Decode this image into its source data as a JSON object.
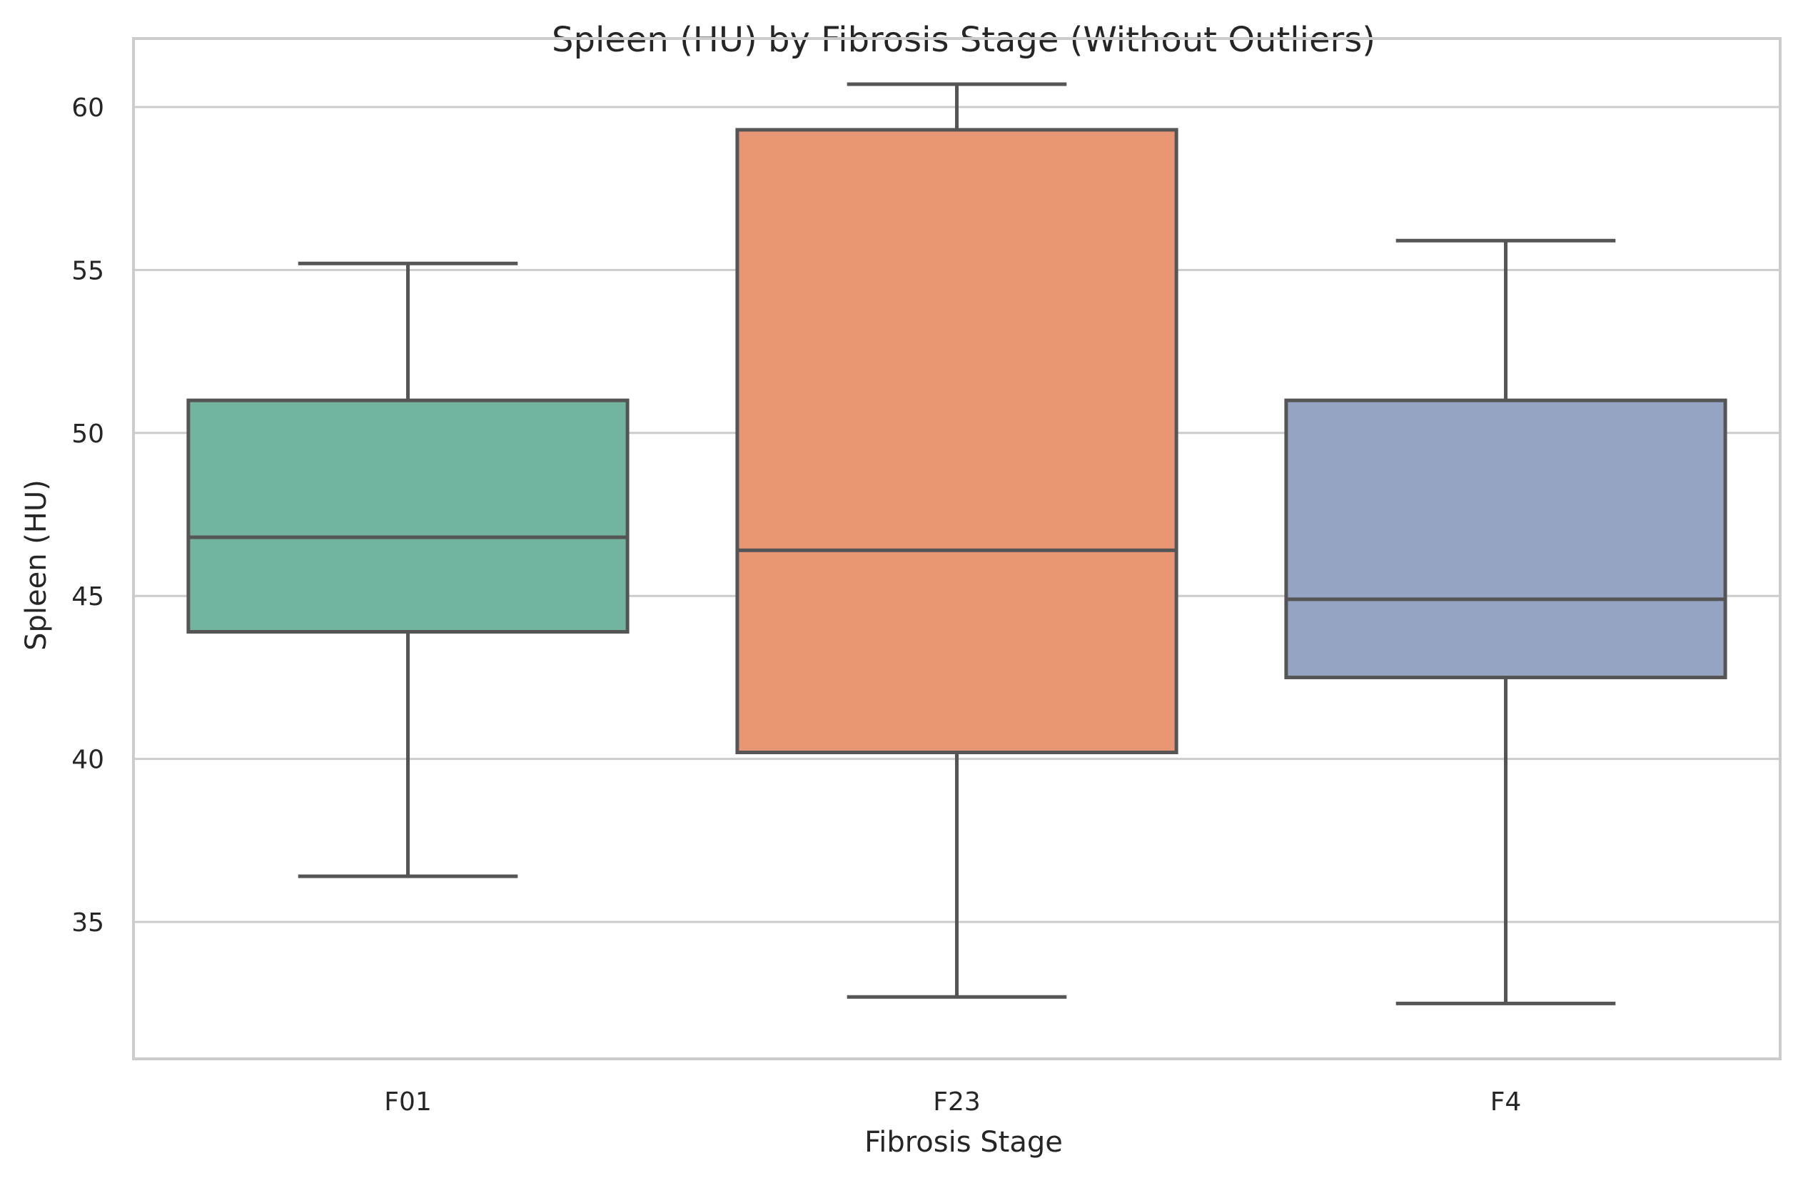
{
  "chart_data": {
    "type": "box",
    "title": "Spleen (HU) by Fibrosis Stage (Without Outliers)",
    "xlabel": "Fibrosis Stage",
    "ylabel": "Spleen (HU)",
    "ylim": [
      30.8,
      62.1
    ],
    "yticks": [
      35,
      40,
      45,
      50,
      55,
      60
    ],
    "grid": true,
    "categories": [
      "F01",
      "F23",
      "F4"
    ],
    "colors": [
      "#72b4a0",
      "#e99675",
      "#95a4c3"
    ],
    "boxes": [
      {
        "category": "F01",
        "whisker_low": 36.4,
        "q1": 43.9,
        "median": 46.8,
        "q3": 51.0,
        "whisker_high": 55.2
      },
      {
        "category": "F23",
        "whisker_low": 32.7,
        "q1": 40.2,
        "median": 46.4,
        "q3": 59.3,
        "whisker_high": 60.7
      },
      {
        "category": "F4",
        "whisker_low": 32.5,
        "q1": 42.5,
        "median": 44.9,
        "q3": 51.0,
        "whisker_high": 55.9
      }
    ]
  }
}
